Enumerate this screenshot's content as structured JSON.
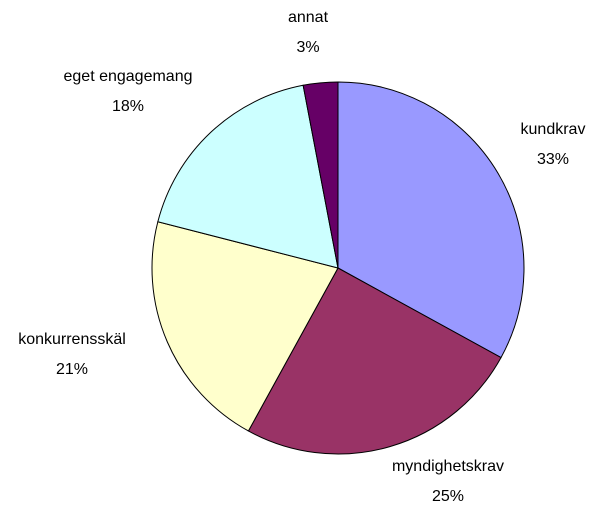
{
  "chart_data": {
    "type": "pie",
    "categories": [
      "kundkrav",
      "myndighetskrav",
      "konkurrensskäl",
      "eget engagemang",
      "annat"
    ],
    "values": [
      33,
      25,
      21,
      18,
      3
    ],
    "value_labels": [
      "33%",
      "25%",
      "21%",
      "18%",
      "3%"
    ],
    "colors": [
      "#9999ff",
      "#993366",
      "#ffffcc",
      "#ccffff",
      "#660066"
    ]
  }
}
